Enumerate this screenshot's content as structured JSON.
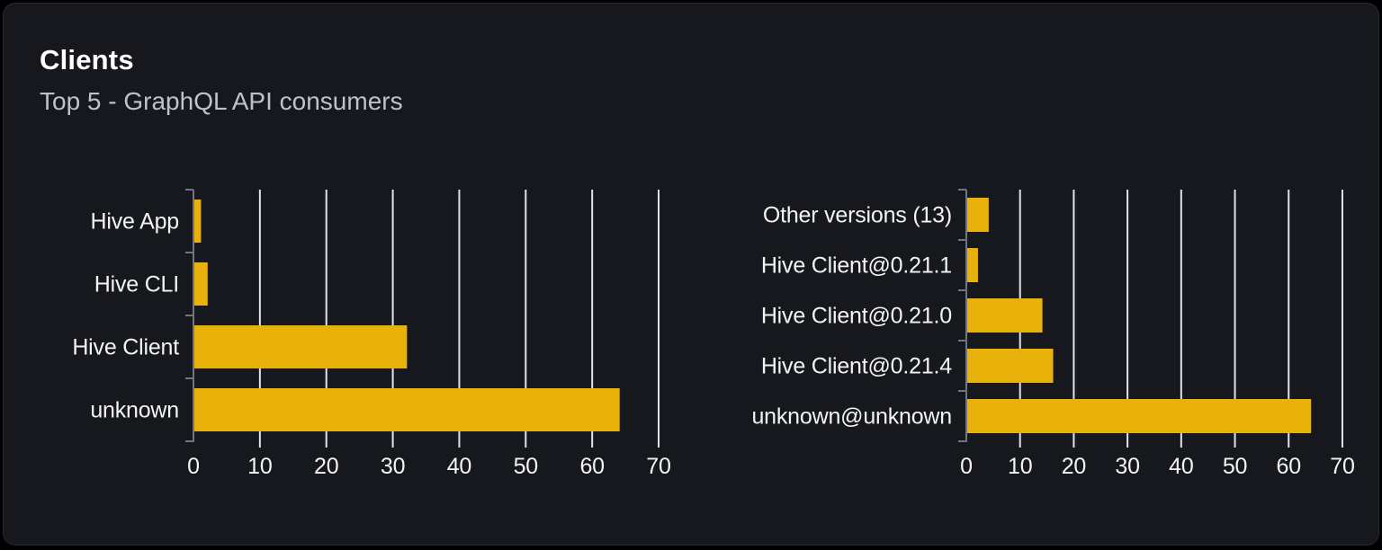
{
  "card": {
    "title": "Clients",
    "subtitle": "Top 5 - GraphQL API consumers"
  },
  "colors": {
    "page_background": "#000000",
    "card_background": "#16181d",
    "card_border": "#272b32",
    "title_text": "#ffffff",
    "subtitle_text": "#bfc3c9",
    "bar": "#e8b20b",
    "grid_line": "#dfe4ea",
    "axis_line": "#71757c",
    "label_text": "#f3f4f6"
  },
  "chart_data": [
    {
      "type": "bar",
      "orientation": "horizontal",
      "name": "clients-by-name",
      "title": "",
      "xlabel": "",
      "ylabel": "",
      "categories": [
        "Hive App",
        "Hive CLI",
        "Hive Client",
        "unknown"
      ],
      "values": [
        1,
        2,
        32,
        64
      ],
      "xlim": [
        0,
        70
      ],
      "xticks": [
        0,
        10,
        20,
        30,
        40,
        50,
        60,
        70
      ],
      "grid": true,
      "legend": false
    },
    {
      "type": "bar",
      "orientation": "horizontal",
      "name": "clients-by-version",
      "title": "",
      "xlabel": "",
      "ylabel": "",
      "categories": [
        "Other versions (13)",
        "Hive Client@0.21.1",
        "Hive Client@0.21.0",
        "Hive Client@0.21.4",
        "unknown@unknown"
      ],
      "values": [
        4,
        2,
        14,
        16,
        64
      ],
      "xlim": [
        0,
        70
      ],
      "xticks": [
        0,
        10,
        20,
        30,
        40,
        50,
        60,
        70
      ],
      "grid": true,
      "legend": false
    }
  ]
}
